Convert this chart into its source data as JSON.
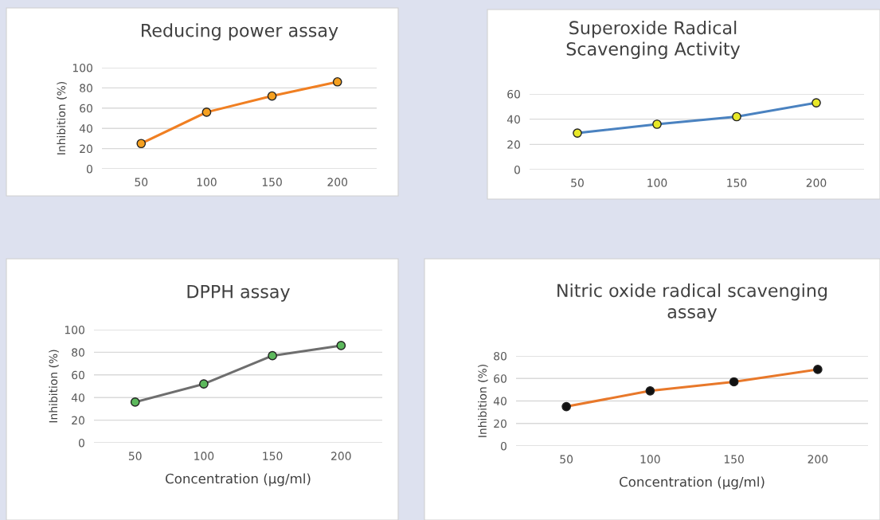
{
  "chart_data": [
    {
      "type": "line",
      "title": "Reducing power assay",
      "ylabel": "Inhibition (%)",
      "categories": [
        "50",
        "100",
        "150",
        "200"
      ],
      "marker": "circle",
      "grid": "y",
      "ylim": [
        0,
        100
      ],
      "yticks": [
        0,
        20,
        40,
        60,
        80,
        100
      ],
      "series": [
        {
          "color": "#f07f22",
          "colors": [
            "#f5a020",
            "#f5a020",
            "#f5a020",
            "#f5a020"
          ],
          "values": [
            25,
            56,
            72,
            86
          ]
        }
      ]
    },
    {
      "type": "line",
      "title": "Superoxide Radical\nScavenging Activity",
      "categories": [
        "50",
        "100",
        "150",
        "200"
      ],
      "marker": "circle",
      "grid": "y",
      "ylim": [
        0,
        60
      ],
      "yticks": [
        0,
        20,
        40,
        60
      ],
      "series": [
        {
          "color": "#4a82c0",
          "colors": [
            "#e8e828",
            "#e8e828",
            "#e8e828",
            "#e8e828"
          ],
          "values": [
            29,
            36,
            42,
            53
          ]
        }
      ]
    },
    {
      "type": "line",
      "title": "DPPH assay",
      "xlabel": "Concentration (µg/ml)",
      "ylabel": "Inhibition (%)",
      "categories": [
        "50",
        "100",
        "150",
        "200"
      ],
      "marker": "circle",
      "grid": "y",
      "ylim": [
        0,
        100
      ],
      "yticks": [
        0,
        20,
        40,
        60,
        80,
        100
      ],
      "series": [
        {
          "color": "#6e6e6e",
          "colors": [
            "#5cb85c",
            "#5cb85c",
            "#5cb85c",
            "#5cb85c"
          ],
          "values": [
            36,
            52,
            77,
            86
          ]
        }
      ]
    },
    {
      "type": "line",
      "title": "Nitric oxide radical scavenging\nassay",
      "xlabel": "Concentration (µg/ml)",
      "ylabel": "Inhibition (%)",
      "categories": [
        "50",
        "100",
        "150",
        "200"
      ],
      "marker": "circle",
      "grid": "y",
      "ylim": [
        0,
        80
      ],
      "yticks": [
        0,
        20,
        40,
        60,
        80
      ],
      "series": [
        {
          "color": "#e8782a",
          "colors": [
            "#111111",
            "#111111",
            "#111111",
            "#111111"
          ],
          "values": [
            35,
            49,
            57,
            68
          ]
        }
      ]
    }
  ]
}
